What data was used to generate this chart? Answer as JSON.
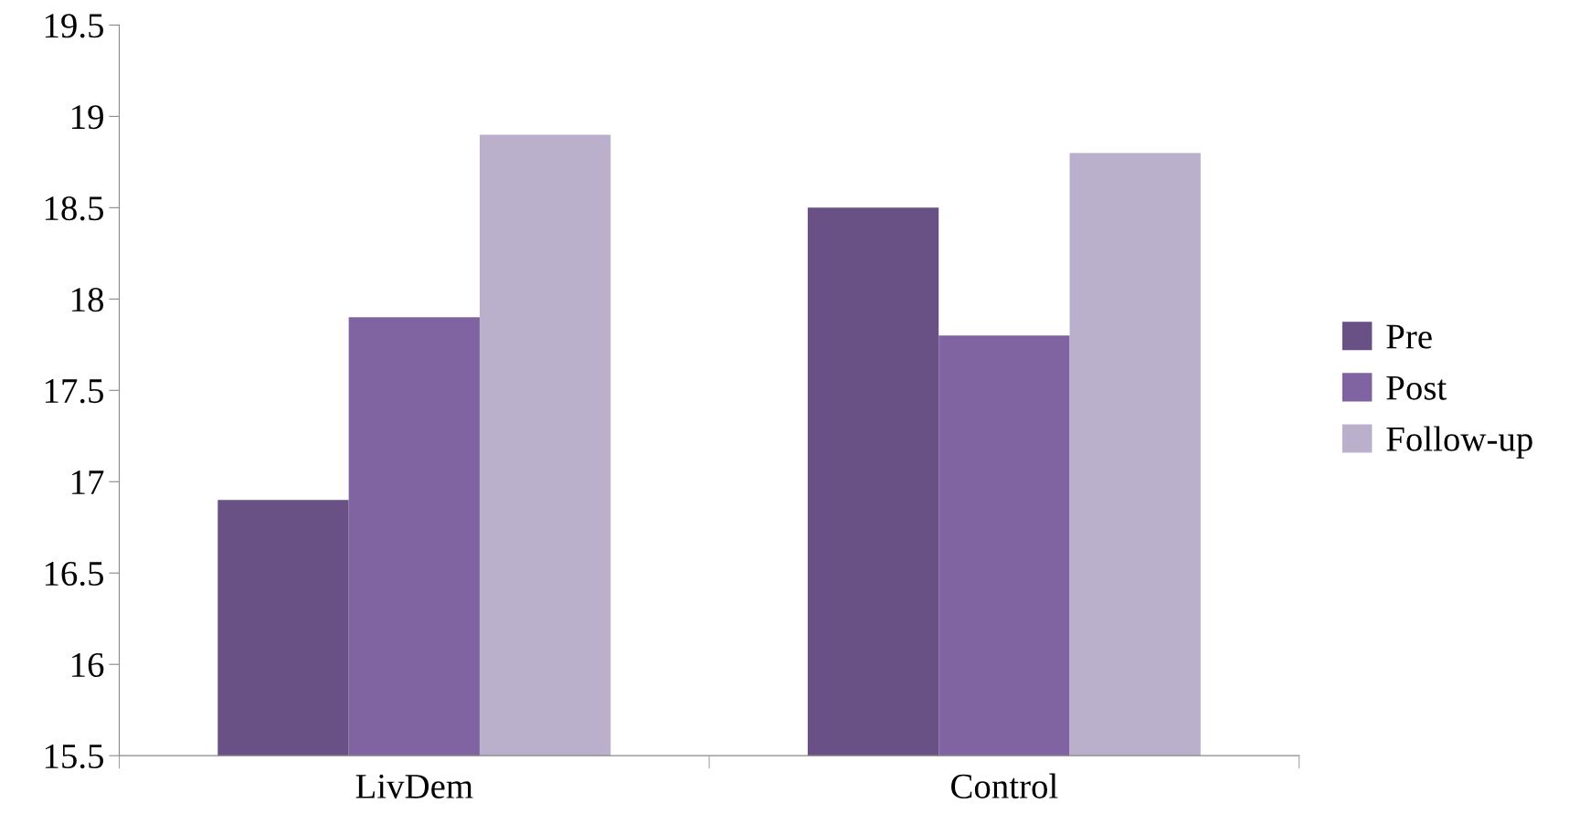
{
  "chart_data": {
    "type": "bar",
    "categories": [
      "LivDem",
      "Control"
    ],
    "series": [
      {
        "name": "Pre",
        "color": "#6a5185",
        "values": [
          16.9,
          18.5
        ]
      },
      {
        "name": "Post",
        "color": "#8064a2",
        "values": [
          17.9,
          17.8
        ]
      },
      {
        "name": "Follow-up",
        "color": "#bab0cb",
        "values": [
          18.9,
          18.8
        ]
      }
    ],
    "ylim": [
      15.5,
      19.5
    ],
    "yticks": [
      15.5,
      16,
      16.5,
      17,
      17.5,
      18,
      18.5,
      19,
      19.5
    ],
    "grid": false,
    "legend": "right"
  }
}
